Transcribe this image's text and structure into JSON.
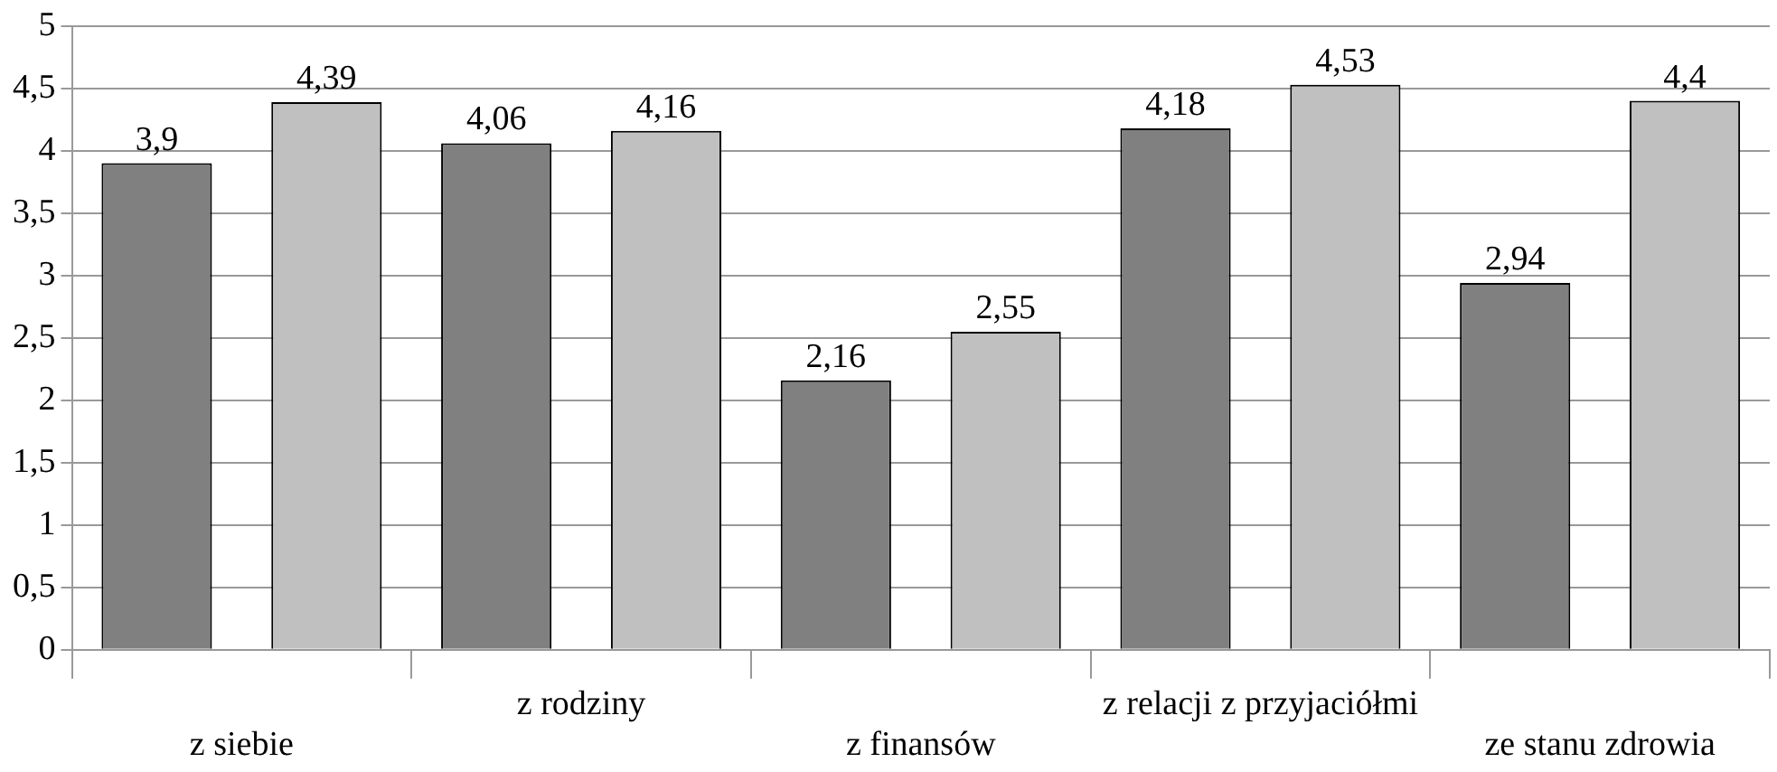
{
  "chart_data": {
    "type": "bar",
    "categories": [
      "z siebie",
      "z rodziny",
      "z finansów",
      "z relacji z przyjaciółmi",
      "ze stanu zdrowia"
    ],
    "series": [
      {
        "color": "#808080",
        "values": [
          3.9,
          4.06,
          2.16,
          4.18,
          2.94
        ],
        "value_labels": [
          "3,9",
          "4,06",
          "2,16",
          "4,18",
          "2,94"
        ]
      },
      {
        "color": "#c0c0c0",
        "values": [
          4.39,
          4.16,
          2.55,
          4.53,
          4.4
        ],
        "value_labels": [
          "4,39",
          "4,16",
          "2,55",
          "4,53",
          "4,4"
        ]
      }
    ],
    "ylim": [
      0,
      5
    ],
    "yticks": [
      0,
      {
        "value": 0.5,
        "label": "0,5"
      },
      1,
      {
        "value": 1.5,
        "label": "1,5"
      },
      2,
      {
        "value": 2.5,
        "label": "2,5"
      },
      3,
      {
        "value": 3.5,
        "label": "3,5"
      },
      4,
      {
        "value": 4.5,
        "label": "4,5"
      },
      5
    ],
    "grid": "y",
    "legend": false
  }
}
